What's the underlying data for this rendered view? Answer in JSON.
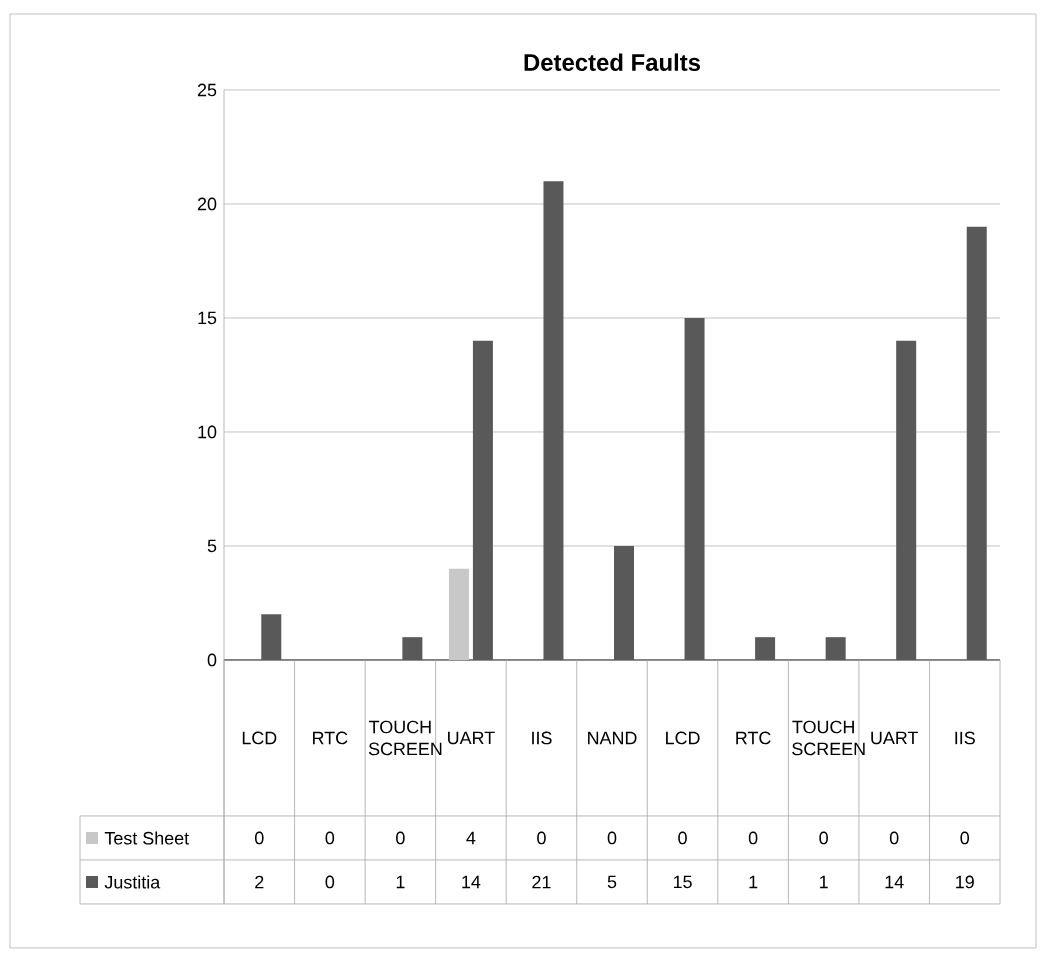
{
  "chart_data": {
    "type": "bar",
    "title": "Detected Faults",
    "categories": [
      "LCD",
      "RTC",
      "TOUCH SCREEN",
      "UART",
      "IIS",
      "NAND",
      "LCD",
      "RTC",
      "TOUCH SCREEN",
      "UART",
      "IIS"
    ],
    "series": [
      {
        "name": "Test Sheet",
        "color": "#c8c8c8",
        "values": [
          0,
          0,
          0,
          4,
          0,
          0,
          0,
          0,
          0,
          0,
          0
        ]
      },
      {
        "name": "Justitia",
        "color": "#595959",
        "values": [
          2,
          0,
          1,
          14,
          21,
          5,
          15,
          1,
          1,
          14,
          19
        ]
      }
    ],
    "ylim": [
      0,
      25
    ],
    "yticks": [
      0,
      5,
      10,
      15,
      20,
      25
    ],
    "grid": "y",
    "legend": "bottom",
    "data_labels": true
  }
}
